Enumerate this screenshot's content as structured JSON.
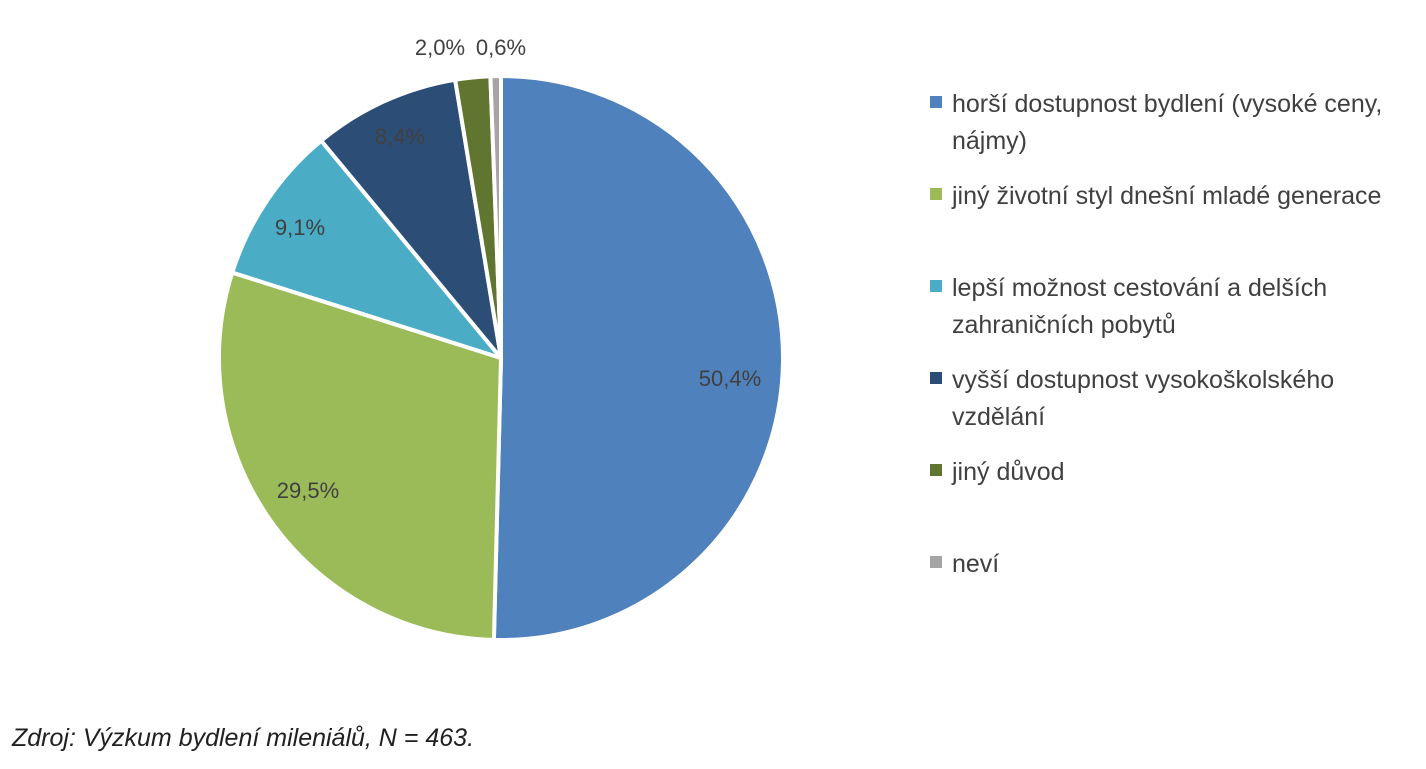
{
  "chart_data": {
    "type": "pie",
    "title": "",
    "slices": [
      {
        "label": "horší dostupnost bydlení (vysoké ceny, nájmy)",
        "value": 50.4,
        "data_label": "50,4%",
        "color": "#4F81BD"
      },
      {
        "label": "jiný životní styl dnešní mladé generace",
        "value": 29.5,
        "data_label": "29,5%",
        "color": "#9BBB59"
      },
      {
        "label": "lepší možnost cestování a delších zahraničních pobytů",
        "value": 9.1,
        "data_label": "9,1%",
        "color": "#4BACC6"
      },
      {
        "label": "vyšší dostupnost vysokoškolského vzdělání",
        "value": 8.4,
        "data_label": "8,4%",
        "color": "#2C4D75"
      },
      {
        "label": "jiný důvod",
        "value": 2.0,
        "data_label": "2,0%",
        "color": "#5F7530"
      },
      {
        "label": "neví",
        "value": 0.6,
        "data_label": "0,6%",
        "color": "#A5A5A5"
      }
    ],
    "start": "12 o'clock",
    "direction": "clockwise",
    "legend_position": "right"
  },
  "source_note": "Zdroj: Výzkum bydlení mileniálů, N = 463."
}
